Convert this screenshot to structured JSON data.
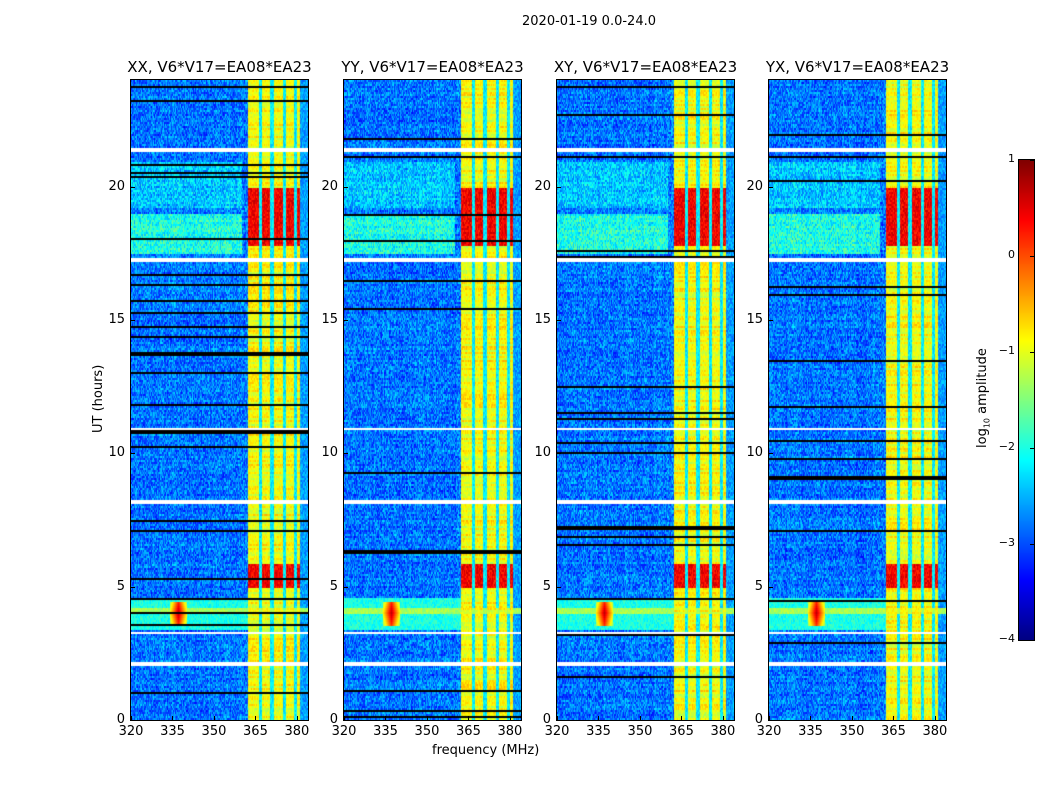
{
  "figure": {
    "suptitle": "2020-01-19 0.0-24.0"
  },
  "chart_data": {
    "type": "heatmap",
    "title": "2020-01-19 0.0-24.0",
    "xlabel": "frequency (MHz)",
    "ylabel": "UT (hours)",
    "xlim": [
      320,
      384
    ],
    "ylim": [
      0,
      24
    ],
    "xticks": [
      320,
      335,
      350,
      365,
      380
    ],
    "yticks": [
      0,
      5,
      10,
      15,
      20
    ],
    "colormap": "jet",
    "colorbar": {
      "label_prefix": "log",
      "label_sub": "10",
      "label_suffix": " amplitude",
      "range": [
        -4,
        1
      ],
      "ticks": [
        1,
        0,
        -1,
        -2,
        -3,
        -4
      ],
      "tick_labels": [
        "1",
        "0",
        "−1",
        "−2",
        "−3",
        "−4"
      ],
      "location": "right"
    },
    "panels": [
      {
        "title": "XX, V6*V17=EA08*EA23",
        "seed": 11
      },
      {
        "title": "YY, V6*V17=EA08*EA23",
        "seed": 23
      },
      {
        "title": "XY, V6*V17=EA08*EA23",
        "seed": 37
      },
      {
        "title": "YX, V6*V17=EA08*EA23",
        "seed": 51
      }
    ],
    "features": {
      "bright_band_mhz": [
        362,
        381
      ],
      "band_gaps_mhz": [
        366.5,
        370.8,
        375.2,
        379.4
      ],
      "strong_hours": [
        [
          5.0,
          5.9
        ],
        [
          17.8,
          20.0
        ]
      ],
      "rfi_burst": {
        "freq_mhz": 337,
        "hours": [
          3.6,
          4.5
        ]
      },
      "rfi_line_hours": 4.1,
      "flagged_hours": [
        2.15,
        3.3,
        8.2,
        10.95,
        17.3,
        21.4
      ],
      "background_log_amplitude": -2.8,
      "band_log_amplitude": -0.9,
      "strong_log_amplitude": 0.3
    }
  }
}
